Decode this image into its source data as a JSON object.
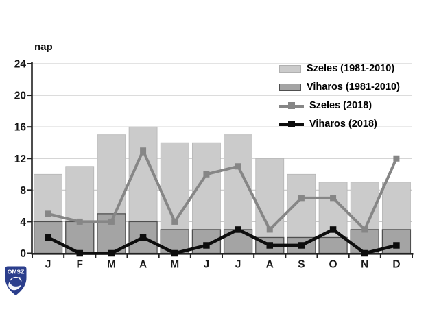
{
  "chart_data": {
    "type": "bar+line",
    "categories": [
      "J",
      "F",
      "M",
      "A",
      "M",
      "J",
      "J",
      "A",
      "S",
      "O",
      "N",
      "D"
    ],
    "series": [
      {
        "name": "Szeles (1981-2010)",
        "type": "bar",
        "color": "#cbcbcb",
        "border": "#b5b5b5",
        "values": [
          10,
          11,
          15,
          16,
          14,
          14,
          15,
          12,
          10,
          9,
          9,
          9
        ]
      },
      {
        "name": "Viharos (1981-2010)",
        "type": "bar",
        "color": "#a4a4a4",
        "border": "#4f4f4f",
        "values": [
          4,
          4,
          5,
          4,
          3,
          3,
          3,
          2,
          2,
          2,
          3,
          3
        ]
      },
      {
        "name": "Szeles (2018)",
        "type": "line",
        "color": "#868686",
        "values": [
          5,
          4,
          4,
          13,
          4,
          10,
          11,
          3,
          7,
          7,
          3,
          12
        ]
      },
      {
        "name": "Viharos (2018)",
        "type": "line",
        "color": "#0d0d0d",
        "values": [
          2,
          0,
          0,
          2,
          0,
          1,
          3,
          1,
          1,
          3,
          0,
          1
        ]
      }
    ],
    "title": "",
    "xlabel": "",
    "ylabel": "nap",
    "ylim": [
      0,
      24
    ],
    "yticks": [
      0,
      4,
      8,
      12,
      16,
      20,
      24
    ],
    "grid": true,
    "grid_color": "#c7c7c7",
    "axis_color": "#222222",
    "legend_position": "top-right"
  },
  "legend": {
    "items": [
      {
        "label": "Szeles (1981-2010)"
      },
      {
        "label": "Viharos (1981-2010)"
      },
      {
        "label": "Szeles (2018)"
      },
      {
        "label": "Viharos (2018)"
      }
    ]
  },
  "logo": {
    "text": "OMSZ",
    "color": "#2b3e8c"
  }
}
